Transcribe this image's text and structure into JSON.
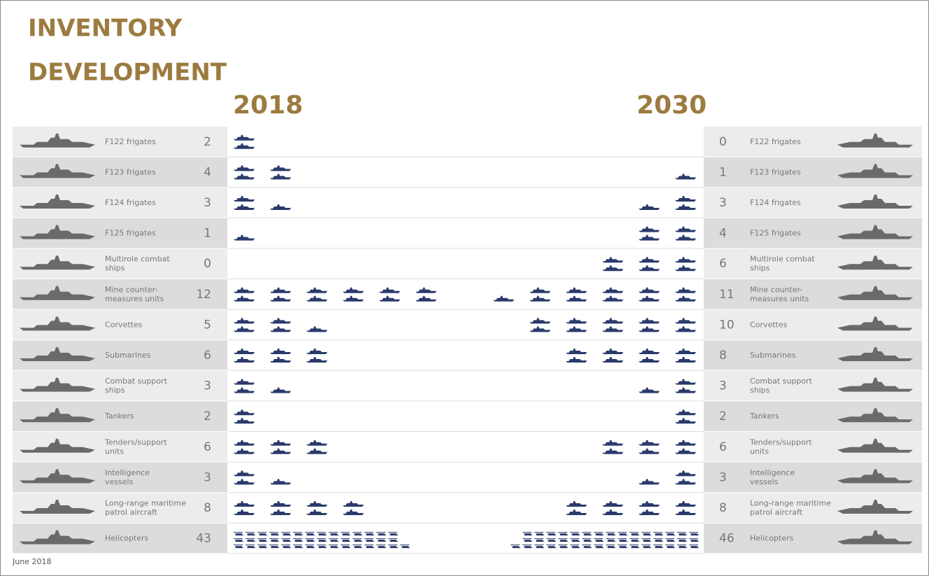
{
  "title_lines": [
    "INVENTORY",
    "DEVELOPMENT"
  ],
  "years": [
    "2018",
    "2030"
  ],
  "rows": [
    {
      "label": [
        "F122 frigates"
      ],
      "count_2018": 2,
      "count_2030": 0
    },
    {
      "label": [
        "F123 frigates"
      ],
      "count_2018": 4,
      "count_2030": 1
    },
    {
      "label": [
        "F124 frigates"
      ],
      "count_2018": 3,
      "count_2030": 3
    },
    {
      "label": [
        "F125 frigates"
      ],
      "count_2018": 1,
      "count_2030": 4
    },
    {
      "label": [
        "Multirole combat",
        "ships"
      ],
      "count_2018": 0,
      "count_2030": 6
    },
    {
      "label": [
        "Mine counter-",
        "measures units"
      ],
      "count_2018": 12,
      "count_2030": 11
    },
    {
      "label": [
        "Corvettes"
      ],
      "count_2018": 5,
      "count_2030": 10
    },
    {
      "label": [
        "Submarines"
      ],
      "count_2018": 6,
      "count_2030": 8
    },
    {
      "label": [
        "Combat support",
        "ships"
      ],
      "count_2018": 3,
      "count_2030": 3
    },
    {
      "label": [
        "Tankers"
      ],
      "count_2018": 2,
      "count_2030": 2
    },
    {
      "label": [
        "Tenders/support",
        "units"
      ],
      "count_2018": 6,
      "count_2030": 6
    },
    {
      "label": [
        "Intelligence",
        "vessels"
      ],
      "count_2018": 3,
      "count_2030": 3
    },
    {
      "label": [
        "Long-range maritime",
        "patrol aircraft"
      ],
      "count_2018": 8,
      "count_2030": 8
    },
    {
      "label": [
        "Helicopters"
      ],
      "count_2018": 43,
      "count_2030": 46
    }
  ],
  "footer": "June 2018"
}
